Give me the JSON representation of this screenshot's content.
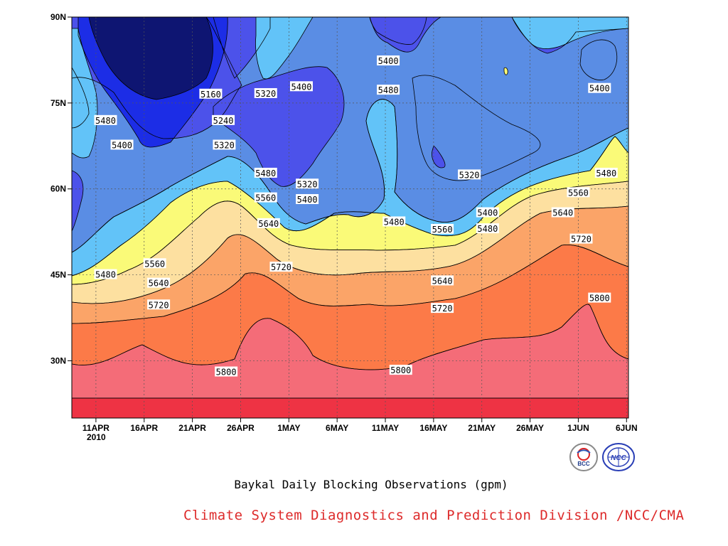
{
  "chart_data": {
    "type": "contour",
    "title": "Baykal Daily Blocking Observations (gpm)",
    "x_ticks": [
      "11APR",
      "16APR",
      "21APR",
      "26APR",
      "1MAY",
      "6MAY",
      "11MAY",
      "16MAY",
      "21MAY",
      "26MAY",
      "1JUN",
      "6JUN"
    ],
    "x_year": "2010",
    "y_ticks": [
      "30N",
      "45N",
      "60N",
      "75N",
      "90N"
    ],
    "y_values": [
      30,
      45,
      60,
      75,
      90
    ],
    "ylim": [
      20,
      90
    ],
    "contour_levels": [
      5160,
      5240,
      5320,
      5400,
      5480,
      5560,
      5640,
      5720,
      5800,
      5880
    ],
    "fill_colors": [
      "#0e1572",
      "#1c2de6",
      "#4c52ea",
      "#5a8de4",
      "#62c3f8",
      "#fafa78",
      "#fde0a0",
      "#fba468",
      "#fc7a48",
      "#f46c78",
      "#ee3344"
    ],
    "contour_labels": [
      {
        "text": "5160",
        "date_index": 11.9,
        "lat": 76.5
      },
      {
        "text": "5240",
        "date_index": 13.2,
        "lat": 71.9
      },
      {
        "text": "5320",
        "date_index": 13.3,
        "lat": 67.6
      },
      {
        "text": "5320",
        "date_index": 17.6,
        "lat": 76.6
      },
      {
        "text": "5400",
        "date_index": 2.7,
        "lat": 67.6
      },
      {
        "text": "5480",
        "date_index": 1.0,
        "lat": 71.9
      },
      {
        "text": "5400",
        "date_index": 21.3,
        "lat": 77.8
      },
      {
        "text": "5400",
        "date_index": 30.3,
        "lat": 82.3
      },
      {
        "text": "5480",
        "date_index": 30.3,
        "lat": 77.2
      },
      {
        "text": "5480",
        "date_index": 17.6,
        "lat": 62.7
      },
      {
        "text": "5560",
        "date_index": 17.6,
        "lat": 58.4
      },
      {
        "text": "5320",
        "date_index": 21.9,
        "lat": 60.8
      },
      {
        "text": "5400",
        "date_index": 21.9,
        "lat": 58.1
      },
      {
        "text": "5640",
        "date_index": 17.9,
        "lat": 53.9
      },
      {
        "text": "5480",
        "date_index": 30.9,
        "lat": 54.2
      },
      {
        "text": "5560",
        "date_index": 35.9,
        "lat": 52.9
      },
      {
        "text": "5320",
        "date_index": 38.7,
        "lat": 62.4
      },
      {
        "text": "5400",
        "date_index": 40.6,
        "lat": 55.8
      },
      {
        "text": "5480",
        "date_index": 40.6,
        "lat": 53.0
      },
      {
        "text": "5560",
        "date_index": 6.1,
        "lat": 46.9
      },
      {
        "text": "5480",
        "date_index": 1.0,
        "lat": 45.0
      },
      {
        "text": "5640",
        "date_index": 6.5,
        "lat": 43.5
      },
      {
        "text": "5720",
        "date_index": 6.5,
        "lat": 39.7
      },
      {
        "text": "5720",
        "date_index": 19.2,
        "lat": 46.3
      },
      {
        "text": "5640",
        "date_index": 35.9,
        "lat": 43.9
      },
      {
        "text": "5720",
        "date_index": 35.9,
        "lat": 39.1
      },
      {
        "text": "5800",
        "date_index": 13.5,
        "lat": 28.0
      },
      {
        "text": "5800",
        "date_index": 31.6,
        "lat": 28.3
      },
      {
        "text": "5480",
        "date_index": 52.9,
        "lat": 62.7
      },
      {
        "text": "5560",
        "date_index": 50.0,
        "lat": 59.3
      },
      {
        "text": "5640",
        "date_index": 48.4,
        "lat": 55.8
      },
      {
        "text": "5720",
        "date_index": 50.3,
        "lat": 51.2
      },
      {
        "text": "5800",
        "date_index": 52.2,
        "lat": 40.9
      },
      {
        "text": "5400",
        "date_index": 52.2,
        "lat": 77.5
      }
    ]
  },
  "caption": "Baykal Daily Blocking Observations (gpm)",
  "credit": "Climate System Diagnostics and Prediction Division /NCC/CMA",
  "logos": {
    "bcc": "BCC",
    "ncc": "NCC"
  }
}
